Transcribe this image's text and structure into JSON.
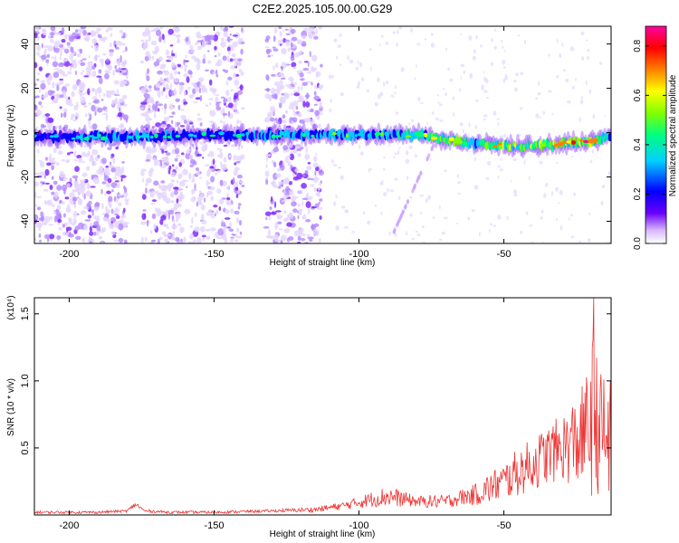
{
  "page": {
    "title": "C2E2.2025.105.00.00.G29"
  },
  "chart_data": [
    {
      "type": "heatmap",
      "title": "C2E2.2025.105.00.00.G29",
      "xlabel": "Height of straight line (km)",
      "ylabel": "Frequency (Hz)",
      "xlim": [
        -212,
        -13
      ],
      "ylim": [
        -50,
        48
      ],
      "x_ticks": [
        -200,
        -150,
        -100,
        -50
      ],
      "y_ticks": [
        -40,
        -20,
        0,
        20,
        40
      ],
      "colorbar": {
        "label": "Normalized spectral amplitude",
        "range": [
          0.0,
          0.88
        ],
        "ticks": [
          0.0,
          0.2,
          0.4,
          0.6,
          0.8
        ],
        "colormap": [
          "#ffffff",
          "#6a00ff",
          "#0000ff",
          "#00d0ff",
          "#00ff80",
          "#80ff00",
          "#ffff00",
          "#ff8000",
          "#ff0000",
          "#ff00a0"
        ]
      },
      "ridge": {
        "description_points_x": [
          -212,
          -180,
          -150,
          -120,
          -100,
          -80,
          -70,
          -60,
          -50,
          -40,
          -30,
          -20,
          -13
        ],
        "center_freq": [
          -2,
          -2,
          -1,
          -1,
          -1,
          -1,
          -3,
          -5,
          -6,
          -6,
          -5,
          -4,
          -2
        ],
        "peak_amplitude": [
          0.3,
          0.45,
          0.35,
          0.45,
          0.5,
          0.55,
          0.8,
          0.6,
          0.85,
          0.8,
          0.85,
          0.88,
          0.5
        ]
      },
      "noise_bands_x": [
        [
          -212,
          -180
        ],
        [
          -175,
          -140
        ],
        [
          -132,
          -113
        ]
      ]
    },
    {
      "type": "line",
      "xlabel": "Height of straight line (km)",
      "ylabel": "SNR (10 * v/v)",
      "y_multiplier": "(x10⁴)",
      "xlim": [
        -212,
        -13
      ],
      "ylim": [
        0,
        1.62
      ],
      "x_ticks": [
        -200,
        -150,
        -100,
        -50
      ],
      "y_ticks": [
        0.5,
        1.0,
        1.5
      ],
      "y_tick_labels": [
        "0.5",
        "1.0",
        "1.5"
      ],
      "series_color": "#ee3333",
      "envelope": {
        "x": [
          -212,
          -190,
          -180,
          -177,
          -174,
          -165,
          -150,
          -130,
          -115,
          -105,
          -95,
          -90,
          -85,
          -80,
          -75,
          -70,
          -65,
          -60,
          -55,
          -50,
          -45,
          -40,
          -35,
          -30,
          -25,
          -22,
          -19,
          -17,
          -15,
          -13
        ],
        "y_mean": [
          0.02,
          0.02,
          0.03,
          0.08,
          0.03,
          0.02,
          0.02,
          0.03,
          0.04,
          0.07,
          0.12,
          0.14,
          0.12,
          0.1,
          0.1,
          0.1,
          0.13,
          0.15,
          0.2,
          0.25,
          0.32,
          0.38,
          0.45,
          0.5,
          0.55,
          0.6,
          0.75,
          0.62,
          0.6,
          0.55
        ],
        "y_spread": [
          0.01,
          0.01,
          0.01,
          0.02,
          0.01,
          0.01,
          0.01,
          0.01,
          0.02,
          0.03,
          0.06,
          0.08,
          0.06,
          0.04,
          0.05,
          0.05,
          0.06,
          0.08,
          0.12,
          0.14,
          0.18,
          0.2,
          0.22,
          0.25,
          0.35,
          0.4,
          0.65,
          0.45,
          0.5,
          0.45
        ]
      }
    }
  ]
}
